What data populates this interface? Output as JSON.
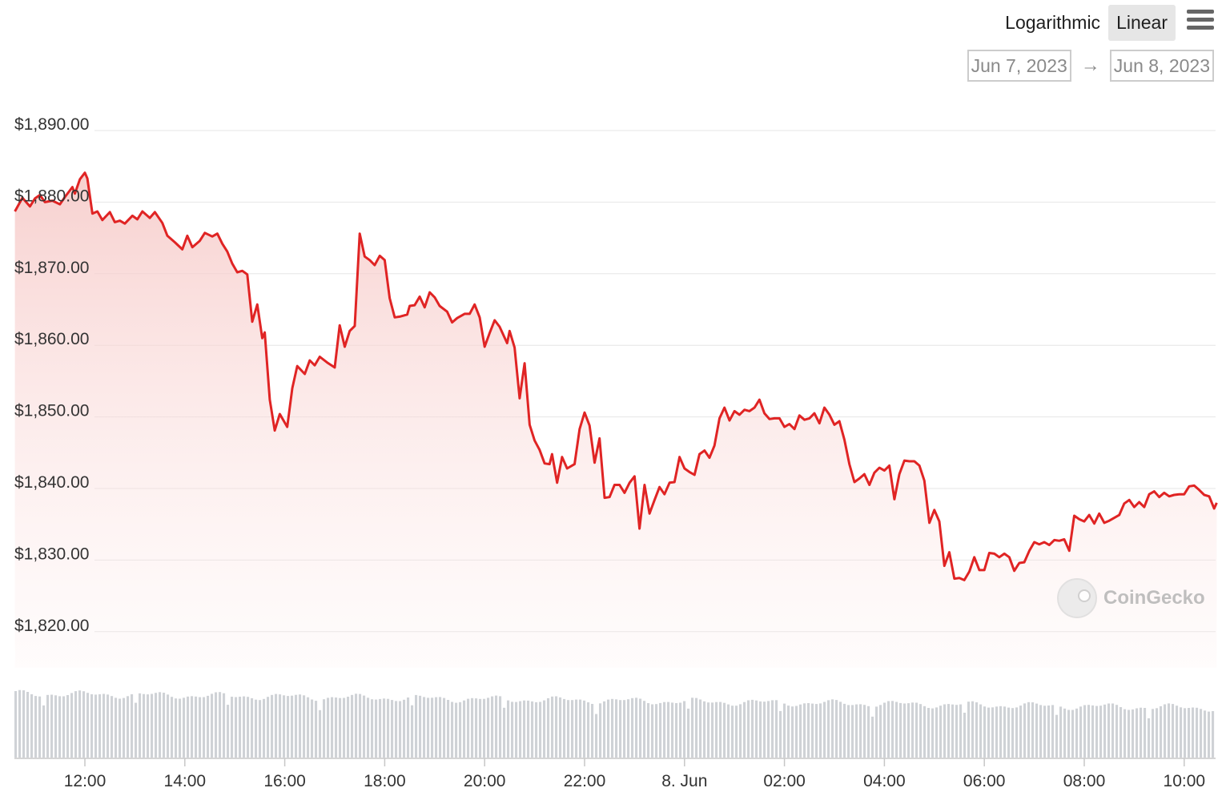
{
  "controls": {
    "scale_options": [
      "Logarithmic",
      "Linear"
    ],
    "active_scale": "Linear",
    "date_from": "Jun 7, 2023",
    "date_to": "Jun 8, 2023",
    "arrow": "→"
  },
  "watermark": "CoinGecko",
  "colors": {
    "line": "#e02424",
    "area_top": "#f8d3d1",
    "grid": "#e6e6e6",
    "volume": "#cfd2d6"
  },
  "chart_data": {
    "type": "area",
    "title": "",
    "ylabel": "",
    "xlabel": "",
    "ylim": [
      1815,
      1890
    ],
    "y_ticks": [
      1890,
      1880,
      1870,
      1860,
      1850,
      1840,
      1830,
      1820
    ],
    "y_tick_labels": [
      "$1,890.00",
      "$1,880.00",
      "$1,870.00",
      "$1,860.00",
      "$1,850.00",
      "$1,840.00",
      "$1,830.00",
      "$1,820.00"
    ],
    "x_range_hours": [
      10.6,
      34.8
    ],
    "x_ticks": [
      12,
      14,
      16,
      18,
      20,
      22,
      24,
      26,
      28,
      30,
      32,
      34
    ],
    "x_tick_labels": [
      "12:00",
      "14:00",
      "16:00",
      "18:00",
      "20:00",
      "22:00",
      "8. Jun",
      "02:00",
      "04:00",
      "06:00",
      "08:00",
      "10:00"
    ],
    "grid": true,
    "series": [
      {
        "values": [
          [
            10.6,
            1878.7
          ],
          [
            10.75,
            1880.6
          ],
          [
            10.9,
            1879.4
          ],
          [
            11.0,
            1880.5
          ],
          [
            11.1,
            1881.0
          ],
          [
            11.2,
            1880.0
          ],
          [
            11.35,
            1880.2
          ],
          [
            11.5,
            1879.7
          ],
          [
            11.6,
            1880.7
          ],
          [
            11.75,
            1882.1
          ],
          [
            11.8,
            1881.2
          ],
          [
            11.9,
            1883.2
          ],
          [
            12.0,
            1884.1
          ],
          [
            12.05,
            1883.3
          ],
          [
            12.15,
            1878.4
          ],
          [
            12.25,
            1878.7
          ],
          [
            12.35,
            1877.5
          ],
          [
            12.5,
            1878.6
          ],
          [
            12.6,
            1877.2
          ],
          [
            12.7,
            1877.4
          ],
          [
            12.8,
            1877.0
          ],
          [
            12.95,
            1878.1
          ],
          [
            13.05,
            1877.6
          ],
          [
            13.15,
            1878.7
          ],
          [
            13.3,
            1877.8
          ],
          [
            13.4,
            1878.6
          ],
          [
            13.55,
            1877.1
          ],
          [
            13.65,
            1875.3
          ],
          [
            13.8,
            1874.4
          ],
          [
            13.95,
            1873.4
          ],
          [
            14.05,
            1875.3
          ],
          [
            14.15,
            1873.7
          ],
          [
            14.3,
            1874.6
          ],
          [
            14.4,
            1875.7
          ],
          [
            14.55,
            1875.2
          ],
          [
            14.65,
            1875.6
          ],
          [
            14.75,
            1874.2
          ],
          [
            14.85,
            1873.1
          ],
          [
            14.95,
            1871.4
          ],
          [
            15.05,
            1870.2
          ],
          [
            15.15,
            1870.4
          ],
          [
            15.25,
            1869.9
          ],
          [
            15.35,
            1863.3
          ],
          [
            15.45,
            1865.7
          ],
          [
            15.55,
            1861.0
          ],
          [
            15.6,
            1861.8
          ],
          [
            15.7,
            1852.4
          ],
          [
            15.8,
            1848.1
          ],
          [
            15.9,
            1850.4
          ],
          [
            16.05,
            1848.6
          ],
          [
            16.15,
            1854.0
          ],
          [
            16.25,
            1857.1
          ],
          [
            16.4,
            1856.0
          ],
          [
            16.5,
            1857.9
          ],
          [
            16.6,
            1857.2
          ],
          [
            16.7,
            1858.4
          ],
          [
            16.85,
            1857.6
          ],
          [
            17.0,
            1856.9
          ],
          [
            17.1,
            1862.8
          ],
          [
            17.2,
            1859.8
          ],
          [
            17.3,
            1862.0
          ],
          [
            17.4,
            1862.7
          ],
          [
            17.5,
            1875.6
          ],
          [
            17.6,
            1872.4
          ],
          [
            17.7,
            1871.9
          ],
          [
            17.8,
            1871.2
          ],
          [
            17.9,
            1872.5
          ],
          [
            18.0,
            1871.9
          ],
          [
            18.1,
            1866.6
          ],
          [
            18.2,
            1863.9
          ],
          [
            18.3,
            1864.0
          ],
          [
            18.45,
            1864.3
          ],
          [
            18.5,
            1865.5
          ],
          [
            18.6,
            1865.6
          ],
          [
            18.7,
            1866.8
          ],
          [
            18.8,
            1865.3
          ],
          [
            18.9,
            1867.4
          ],
          [
            19.0,
            1866.7
          ],
          [
            19.1,
            1865.5
          ],
          [
            19.25,
            1864.7
          ],
          [
            19.35,
            1863.2
          ],
          [
            19.45,
            1863.8
          ],
          [
            19.6,
            1864.4
          ],
          [
            19.7,
            1864.4
          ],
          [
            19.8,
            1865.7
          ],
          [
            19.9,
            1863.9
          ],
          [
            20.0,
            1859.8
          ],
          [
            20.1,
            1861.7
          ],
          [
            20.2,
            1863.5
          ],
          [
            20.3,
            1862.6
          ],
          [
            20.45,
            1860.3
          ],
          [
            20.5,
            1862.0
          ],
          [
            20.6,
            1859.7
          ],
          [
            20.7,
            1852.6
          ],
          [
            20.8,
            1857.5
          ],
          [
            20.9,
            1848.9
          ],
          [
            21.0,
            1846.7
          ],
          [
            21.1,
            1845.4
          ],
          [
            21.2,
            1843.5
          ],
          [
            21.3,
            1843.4
          ],
          [
            21.35,
            1844.8
          ],
          [
            21.45,
            1840.8
          ],
          [
            21.55,
            1844.4
          ],
          [
            21.65,
            1842.8
          ],
          [
            21.8,
            1843.4
          ],
          [
            21.9,
            1848.3
          ],
          [
            22.0,
            1850.6
          ],
          [
            22.1,
            1848.8
          ],
          [
            22.2,
            1843.6
          ],
          [
            22.3,
            1847.0
          ],
          [
            22.4,
            1838.7
          ],
          [
            22.5,
            1838.8
          ],
          [
            22.6,
            1840.5
          ],
          [
            22.7,
            1840.5
          ],
          [
            22.8,
            1839.4
          ],
          [
            22.9,
            1840.8
          ],
          [
            23.0,
            1841.7
          ],
          [
            23.1,
            1834.4
          ],
          [
            23.2,
            1840.5
          ],
          [
            23.3,
            1836.5
          ],
          [
            23.4,
            1838.4
          ],
          [
            23.5,
            1840.2
          ],
          [
            23.6,
            1839.2
          ],
          [
            23.7,
            1840.8
          ],
          [
            23.8,
            1840.9
          ],
          [
            23.9,
            1844.4
          ],
          [
            24.0,
            1842.8
          ],
          [
            24.1,
            1842.3
          ],
          [
            24.2,
            1841.9
          ],
          [
            24.3,
            1844.8
          ],
          [
            24.4,
            1845.3
          ],
          [
            24.5,
            1844.3
          ],
          [
            24.6,
            1846.0
          ],
          [
            24.7,
            1849.8
          ],
          [
            24.8,
            1851.3
          ],
          [
            24.9,
            1849.5
          ],
          [
            25.0,
            1850.8
          ],
          [
            25.1,
            1850.3
          ],
          [
            25.2,
            1851.0
          ],
          [
            25.3,
            1850.8
          ],
          [
            25.4,
            1851.3
          ],
          [
            25.5,
            1852.4
          ],
          [
            25.6,
            1850.5
          ],
          [
            25.7,
            1849.7
          ],
          [
            25.8,
            1849.8
          ],
          [
            25.9,
            1849.8
          ],
          [
            26.0,
            1848.6
          ],
          [
            26.1,
            1849.0
          ],
          [
            26.2,
            1848.3
          ],
          [
            26.3,
            1850.2
          ],
          [
            26.4,
            1849.6
          ],
          [
            26.5,
            1849.8
          ],
          [
            26.6,
            1850.5
          ],
          [
            26.7,
            1849.1
          ],
          [
            26.8,
            1851.3
          ],
          [
            26.9,
            1850.3
          ],
          [
            27.0,
            1848.9
          ],
          [
            27.1,
            1849.4
          ],
          [
            27.2,
            1846.8
          ],
          [
            27.3,
            1843.4
          ],
          [
            27.4,
            1840.9
          ],
          [
            27.5,
            1841.4
          ],
          [
            27.6,
            1842.0
          ],
          [
            27.7,
            1840.5
          ],
          [
            27.8,
            1842.2
          ],
          [
            27.9,
            1842.9
          ],
          [
            28.0,
            1842.5
          ],
          [
            28.1,
            1843.2
          ],
          [
            28.2,
            1838.5
          ],
          [
            28.3,
            1842.0
          ],
          [
            28.4,
            1843.9
          ],
          [
            28.5,
            1843.8
          ],
          [
            28.6,
            1843.8
          ],
          [
            28.7,
            1843.2
          ],
          [
            28.8,
            1841.1
          ],
          [
            28.9,
            1835.2
          ],
          [
            29.0,
            1837.0
          ],
          [
            29.1,
            1835.4
          ],
          [
            29.2,
            1829.2
          ],
          [
            29.3,
            1831.1
          ],
          [
            29.4,
            1827.4
          ],
          [
            29.5,
            1827.5
          ],
          [
            29.6,
            1827.2
          ],
          [
            29.7,
            1828.4
          ],
          [
            29.8,
            1830.4
          ],
          [
            29.9,
            1828.6
          ],
          [
            30.0,
            1828.6
          ],
          [
            30.1,
            1831.0
          ],
          [
            30.2,
            1830.9
          ],
          [
            30.3,
            1830.4
          ],
          [
            30.4,
            1830.9
          ],
          [
            30.5,
            1830.4
          ],
          [
            30.6,
            1828.5
          ],
          [
            30.7,
            1829.6
          ],
          [
            30.8,
            1829.7
          ],
          [
            30.9,
            1831.3
          ],
          [
            31.0,
            1832.5
          ],
          [
            31.1,
            1832.2
          ],
          [
            31.2,
            1832.5
          ],
          [
            31.3,
            1832.1
          ],
          [
            31.4,
            1832.8
          ],
          [
            31.5,
            1832.7
          ],
          [
            31.6,
            1832.9
          ],
          [
            31.7,
            1831.3
          ],
          [
            31.8,
            1836.2
          ],
          [
            31.9,
            1835.7
          ],
          [
            32.0,
            1835.4
          ],
          [
            32.1,
            1836.3
          ],
          [
            32.2,
            1835.1
          ],
          [
            32.3,
            1836.5
          ],
          [
            32.4,
            1835.2
          ],
          [
            32.5,
            1835.5
          ],
          [
            32.6,
            1835.9
          ],
          [
            32.7,
            1836.3
          ],
          [
            32.8,
            1837.9
          ],
          [
            32.9,
            1838.4
          ],
          [
            33.0,
            1837.4
          ],
          [
            33.1,
            1838.1
          ],
          [
            33.2,
            1837.4
          ],
          [
            33.3,
            1839.2
          ],
          [
            33.4,
            1839.6
          ],
          [
            33.5,
            1838.8
          ],
          [
            33.6,
            1839.4
          ],
          [
            33.7,
            1838.9
          ],
          [
            33.8,
            1839.1
          ],
          [
            33.9,
            1839.2
          ],
          [
            34.0,
            1839.2
          ],
          [
            34.1,
            1840.3
          ],
          [
            34.2,
            1840.4
          ],
          [
            34.3,
            1839.8
          ],
          [
            34.4,
            1839.1
          ],
          [
            34.5,
            1838.9
          ],
          [
            34.6,
            1837.2
          ],
          [
            34.65,
            1838.0
          ]
        ]
      }
    ]
  }
}
